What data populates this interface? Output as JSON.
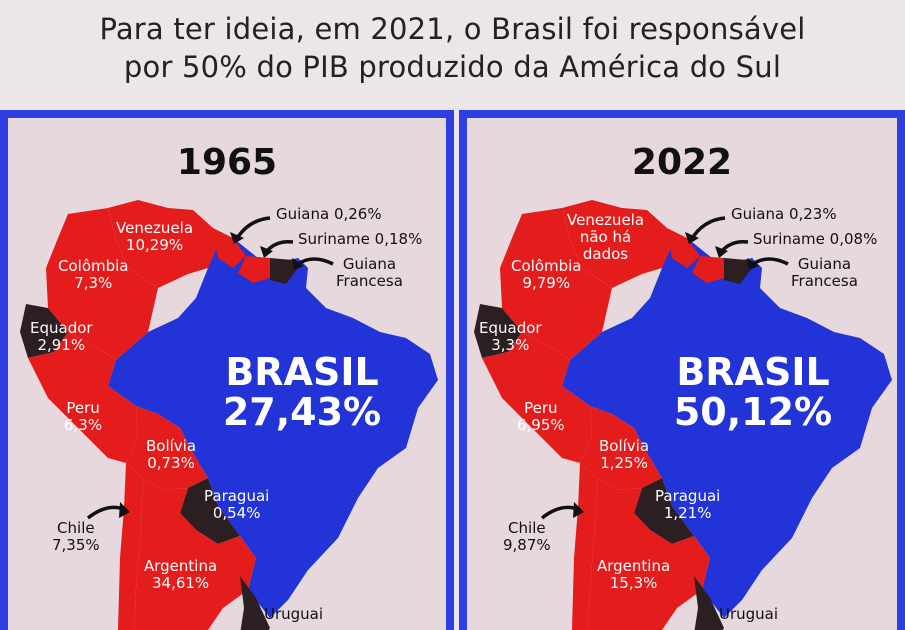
{
  "header": {
    "line1": "Para ter ideia, em 2021, o Brasil foi responsável",
    "line2": "por 50% do PIB produzido da América do Sul"
  },
  "colors": {
    "frame": "#2d3fe0",
    "brazil": "#2233d8",
    "region": "#e41c1c",
    "dark": "#2b1f22"
  },
  "maps": [
    {
      "year": "1965",
      "brasil": {
        "name": "BRASIL",
        "value": "27,43%"
      },
      "labels": {
        "venezuela": [
          "Venezuela",
          "10,29%"
        ],
        "guiana": "Guiana 0,26%",
        "suriname": "Suriname  0,18%",
        "guiana_francesa": [
          "Guiana",
          "Francesa"
        ],
        "colombia": [
          "Colômbia",
          "7,3%"
        ],
        "equador": [
          "Equador",
          "2,91%"
        ],
        "peru": [
          "Peru",
          "6,3%"
        ],
        "bolivia": [
          "Bolívia",
          "0,73%"
        ],
        "paraguai": [
          "Paraguai",
          "0,54%"
        ],
        "chile": [
          "Chile",
          "7,35%"
        ],
        "argentina": [
          "Argentina",
          "34,61%"
        ],
        "uruguai": "Uruguai"
      }
    },
    {
      "year": "2022",
      "brasil": {
        "name": "BRASIL",
        "value": "50,12%"
      },
      "labels": {
        "venezuela": [
          "Venezuela",
          "não há",
          "dados"
        ],
        "guiana": "Guiana 0,23%",
        "suriname": "Suriname  0,08%",
        "guiana_francesa": [
          "Guiana",
          "Francesa"
        ],
        "colombia": [
          "Colômbia",
          "9,79%"
        ],
        "equador": [
          "Equador",
          "3,3%"
        ],
        "peru": [
          "Peru",
          "6,95%"
        ],
        "bolivia": [
          "Bolívia",
          "1,25%"
        ],
        "paraguai": [
          "Paraguai",
          "1,21%"
        ],
        "chile": [
          "Chile",
          "9,87%"
        ],
        "argentina": [
          "Argentina",
          "15,3%"
        ],
        "uruguai": "Uruguai"
      }
    }
  ]
}
